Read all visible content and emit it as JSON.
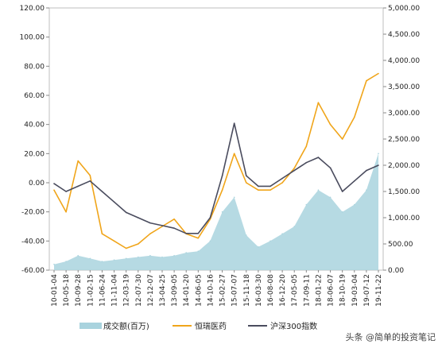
{
  "chart_data": {
    "type": "line",
    "title": "",
    "xlabel": "",
    "ylabel": "",
    "ylim": [
      -60,
      120
    ],
    "y2lim": [
      0,
      5000
    ],
    "grid": false,
    "legend_position": "bottom",
    "left_ticks": [
      "-60.00",
      "-40.00",
      "-20.00",
      "0.00",
      "20.00",
      "40.00",
      "60.00",
      "80.00",
      "100.00",
      "120.00"
    ],
    "right_ticks": [
      "0.00",
      "500.00",
      "1,000.00",
      "1,500.00",
      "2,000.00",
      "2,500.00",
      "3,000.00",
      "3,500.00",
      "4,000.00",
      "4,500.00",
      "5,000.00"
    ],
    "categories": [
      "10-01-04",
      "10-05-18",
      "10-09-28",
      "11-02-15",
      "11-06-24",
      "11-11-04",
      "12-03-19",
      "12-07-30",
      "12-12-07",
      "13-04-25",
      "13-09-05",
      "14-01-20",
      "14-06-05",
      "14-10-16",
      "15-02-27",
      "15-07-07",
      "15-11-18",
      "16-03-30",
      "16-08-08",
      "16-12-20",
      "17-05-05",
      "17-09-11",
      "18-01-22",
      "18-06-07",
      "18-10-19",
      "19-03-04",
      "19-07-12",
      "19-11-22"
    ],
    "series": [
      {
        "name": "成交额(百万)",
        "axis": "left",
        "style": "area",
        "color": "#a9d3de",
        "values": [
          -56,
          -54,
          -50,
          -52,
          -54,
          -53,
          -52,
          -51,
          -50,
          -51,
          -50,
          -48,
          -47,
          -40,
          -20,
          -10,
          -36,
          -44,
          -40,
          -35,
          -30,
          -15,
          -5,
          -10,
          -20,
          -15,
          -5,
          20
        ]
      },
      {
        "name": "恒瑞医药",
        "axis": "left",
        "style": "line",
        "color": "#f0a51a",
        "values": [
          -5,
          -20,
          15,
          5,
          -35,
          -40,
          -45,
          -42,
          -35,
          -30,
          -25,
          -35,
          -38,
          -25,
          -5,
          20,
          0,
          -5,
          -5,
          0,
          10,
          25,
          55,
          40,
          30,
          45,
          70,
          75
        ]
      },
      {
        "name": "沪深300指数",
        "axis": "right",
        "style": "line",
        "color": "#4a4c5e",
        "values": [
          1650,
          1500,
          1600,
          1700,
          1500,
          1300,
          1100,
          1000,
          900,
          850,
          800,
          700,
          700,
          1000,
          1800,
          2800,
          1800,
          1600,
          1600,
          1750,
          1900,
          2050,
          2150,
          1950,
          1500,
          1700,
          1900,
          2000
        ]
      }
    ]
  },
  "watermark": "头条 @简单的投资笔记"
}
